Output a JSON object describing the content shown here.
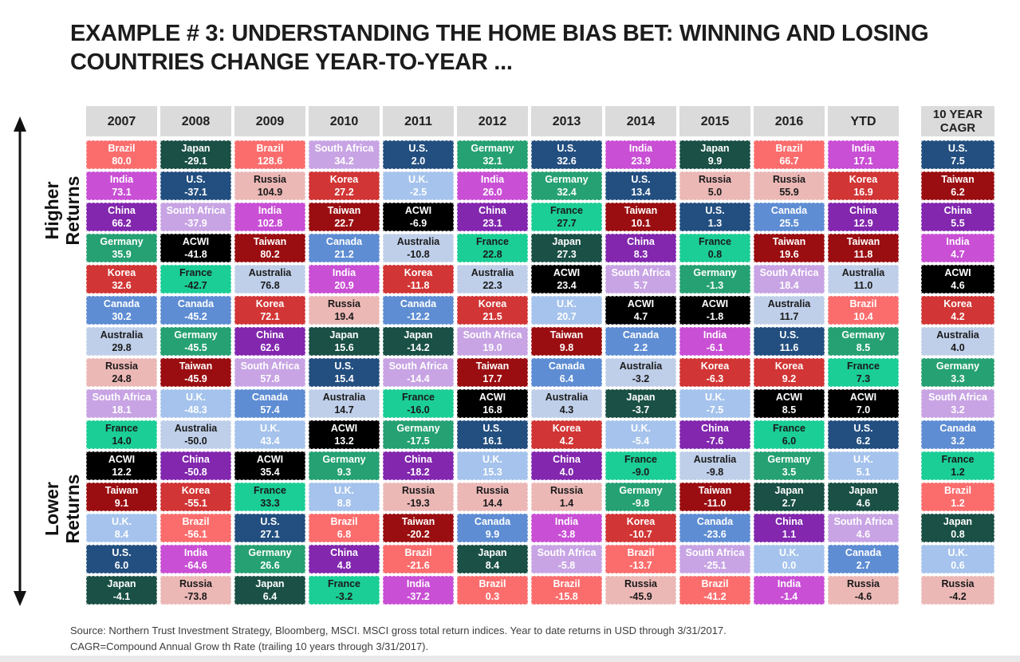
{
  "page": {
    "title_line1": "EXAMPLE # 3:  UNDERSTANDING THE HOME BIAS BET: WINNING AND LOSING",
    "title_line2": "COUNTRIES CHANGE YEAR-TO-YEAR ...",
    "axis": {
      "higher_label": "Higher Returns",
      "higher_line1": "Higher",
      "higher_line2": "Returns",
      "lower_label": "Lower Returns",
      "lower_line1": "Lower",
      "lower_line2": "Returns"
    },
    "footer_line1": "Source: Northern Trust Investment Strategy, Bloomberg, MSCI. MSCI gross total return indices. Year to date returns in USD through 3/31/2017.",
    "footer_line2": "CAGR=Compound Annual Grow th Rate (trailing 10 years through 3/31/2017)."
  },
  "chart_data": {
    "type": "table",
    "title": "Understanding the home bias bet: winning and losing countries change year-to-year",
    "description": "Periodic table of annual MSCI country index total returns (%), ranked best to worst per year",
    "legend_position": "none",
    "header_bg": "#dbdbdb",
    "country_colors": {
      "Brazil": {
        "bg": "#FB6D6D",
        "fg": "#FFFFFF"
      },
      "India": {
        "bg": "#C94FD5",
        "fg": "#FFFFFF"
      },
      "China": {
        "bg": "#8227AE",
        "fg": "#FFFFFF"
      },
      "Germany": {
        "bg": "#26A173",
        "fg": "#FFFFFF"
      },
      "Korea": {
        "bg": "#D23535",
        "fg": "#FFFFFF"
      },
      "Canada": {
        "bg": "#5E8DD3",
        "fg": "#FFFFFF"
      },
      "Australia": {
        "bg": "#BFCFE9",
        "fg": "#1A1A1A"
      },
      "Russia": {
        "bg": "#EBB8B6",
        "fg": "#1A1A1A"
      },
      "South Africa": {
        "bg": "#C8A4E4",
        "fg": "#FFFFFF"
      },
      "France": {
        "bg": "#1BCE96",
        "fg": "#1A1A1A"
      },
      "ACWI": {
        "bg": "#000000",
        "fg": "#FFFFFF"
      },
      "Taiwan": {
        "bg": "#9A0E11",
        "fg": "#FFFFFF"
      },
      "U.K.": {
        "bg": "#A5C3EC",
        "fg": "#FFFFFF"
      },
      "U.S.": {
        "bg": "#234F80",
        "fg": "#FFFFFF"
      },
      "Japan": {
        "bg": "#1A5045",
        "fg": "#FFFFFF"
      }
    },
    "columns": [
      {
        "label": "2007",
        "cells": [
          [
            "Brazil",
            "80.0"
          ],
          [
            "India",
            "73.1"
          ],
          [
            "China",
            "66.2"
          ],
          [
            "Germany",
            "35.9"
          ],
          [
            "Korea",
            "32.6"
          ],
          [
            "Canada",
            "30.2"
          ],
          [
            "Australia",
            "29.8"
          ],
          [
            "Russia",
            "24.8"
          ],
          [
            "South Africa",
            "18.1"
          ],
          [
            "France",
            "14.0"
          ],
          [
            "ACWI",
            "12.2"
          ],
          [
            "Taiwan",
            "9.1"
          ],
          [
            "U.K.",
            "8.4"
          ],
          [
            "U.S.",
            "6.0"
          ],
          [
            "Japan",
            "-4.1"
          ]
        ]
      },
      {
        "label": "2008",
        "cells": [
          [
            "Japan",
            "-29.1"
          ],
          [
            "U.S.",
            "-37.1"
          ],
          [
            "South Africa",
            "-37.9"
          ],
          [
            "ACWI",
            "-41.8"
          ],
          [
            "France",
            "-42.7"
          ],
          [
            "Canada",
            "-45.2"
          ],
          [
            "Germany",
            "-45.5"
          ],
          [
            "Taiwan",
            "-45.9"
          ],
          [
            "U.K.",
            "-48.3"
          ],
          [
            "Australia",
            "-50.0"
          ],
          [
            "China",
            "-50.8"
          ],
          [
            "Korea",
            "-55.1"
          ],
          [
            "Brazil",
            "-56.1"
          ],
          [
            "India",
            "-64.6"
          ],
          [
            "Russia",
            "-73.8"
          ]
        ]
      },
      {
        "label": "2009",
        "cells": [
          [
            "Brazil",
            "128.6"
          ],
          [
            "Russia",
            "104.9"
          ],
          [
            "India",
            "102.8"
          ],
          [
            "Taiwan",
            "80.2"
          ],
          [
            "Australia",
            "76.8"
          ],
          [
            "Korea",
            "72.1"
          ],
          [
            "China",
            "62.6"
          ],
          [
            "South Africa",
            "57.8"
          ],
          [
            "Canada",
            "57.4"
          ],
          [
            "U.K.",
            "43.4"
          ],
          [
            "ACWI",
            "35.4"
          ],
          [
            "France",
            "33.3"
          ],
          [
            "U.S.",
            "27.1"
          ],
          [
            "Germany",
            "26.6"
          ],
          [
            "Japan",
            "6.4"
          ]
        ]
      },
      {
        "label": "2010",
        "cells": [
          [
            "South Africa",
            "34.2"
          ],
          [
            "Korea",
            "27.2"
          ],
          [
            "Taiwan",
            "22.7"
          ],
          [
            "Canada",
            "21.2"
          ],
          [
            "India",
            "20.9"
          ],
          [
            "Russia",
            "19.4"
          ],
          [
            "Japan",
            "15.6"
          ],
          [
            "U.S.",
            "15.4"
          ],
          [
            "Australia",
            "14.7"
          ],
          [
            "ACWI",
            "13.2"
          ],
          [
            "Germany",
            "9.3"
          ],
          [
            "U.K.",
            "8.8"
          ],
          [
            "Brazil",
            "6.8"
          ],
          [
            "China",
            "4.8"
          ],
          [
            "France",
            "-3.2"
          ]
        ]
      },
      {
        "label": "2011",
        "cells": [
          [
            "U.S.",
            "2.0"
          ],
          [
            "U.K.",
            "-2.5"
          ],
          [
            "ACWI",
            "-6.9"
          ],
          [
            "Australia",
            "-10.8"
          ],
          [
            "Korea",
            "-11.8"
          ],
          [
            "Canada",
            "-12.2"
          ],
          [
            "Japan",
            "-14.2"
          ],
          [
            "South Africa",
            "-14.4"
          ],
          [
            "France",
            "-16.0"
          ],
          [
            "Germany",
            "-17.5"
          ],
          [
            "China",
            "-18.2"
          ],
          [
            "Russia",
            "-19.3"
          ],
          [
            "Taiwan",
            "-20.2"
          ],
          [
            "Brazil",
            "-21.6"
          ],
          [
            "India",
            "-37.2"
          ]
        ]
      },
      {
        "label": "2012",
        "cells": [
          [
            "Germany",
            "32.1"
          ],
          [
            "India",
            "26.0"
          ],
          [
            "China",
            "23.1"
          ],
          [
            "France",
            "22.8"
          ],
          [
            "Australia",
            "22.3"
          ],
          [
            "Korea",
            "21.5"
          ],
          [
            "South Africa",
            "19.0"
          ],
          [
            "Taiwan",
            "17.7"
          ],
          [
            "ACWI",
            "16.8"
          ],
          [
            "U.S.",
            "16.1"
          ],
          [
            "U.K.",
            "15.3"
          ],
          [
            "Russia",
            "14.4"
          ],
          [
            "Canada",
            "9.9"
          ],
          [
            "Japan",
            "8.4"
          ],
          [
            "Brazil",
            "0.3"
          ]
        ]
      },
      {
        "label": "2013",
        "cells": [
          [
            "U.S.",
            "32.6"
          ],
          [
            "Germany",
            "32.4"
          ],
          [
            "France",
            "27.7"
          ],
          [
            "Japan",
            "27.3"
          ],
          [
            "ACWI",
            "23.4"
          ],
          [
            "U.K.",
            "20.7"
          ],
          [
            "Taiwan",
            "9.8"
          ],
          [
            "Canada",
            "6.4"
          ],
          [
            "Australia",
            "4.3"
          ],
          [
            "Korea",
            "4.2"
          ],
          [
            "China",
            "4.0"
          ],
          [
            "Russia",
            "1.4"
          ],
          [
            "India",
            "-3.8"
          ],
          [
            "South Africa",
            "-5.8"
          ],
          [
            "Brazil",
            "-15.8"
          ]
        ]
      },
      {
        "label": "2014",
        "cells": [
          [
            "India",
            "23.9"
          ],
          [
            "U.S.",
            "13.4"
          ],
          [
            "Taiwan",
            "10.1"
          ],
          [
            "China",
            "8.3"
          ],
          [
            "South Africa",
            "5.7"
          ],
          [
            "ACWI",
            "4.7"
          ],
          [
            "Canada",
            "2.2"
          ],
          [
            "Australia",
            "-3.2"
          ],
          [
            "Japan",
            "-3.7"
          ],
          [
            "U.K.",
            "-5.4"
          ],
          [
            "France",
            "-9.0"
          ],
          [
            "Germany",
            "-9.8"
          ],
          [
            "Korea",
            "-10.7"
          ],
          [
            "Brazil",
            "-13.7"
          ],
          [
            "Russia",
            "-45.9"
          ]
        ]
      },
      {
        "label": "2015",
        "cells": [
          [
            "Japan",
            "9.9"
          ],
          [
            "Russia",
            "5.0"
          ],
          [
            "U.S.",
            "1.3"
          ],
          [
            "France",
            "0.8"
          ],
          [
            "Germany",
            "-1.3"
          ],
          [
            "ACWI",
            "-1.8"
          ],
          [
            "India",
            "-6.1"
          ],
          [
            "Korea",
            "-6.3"
          ],
          [
            "U.K.",
            "-7.5"
          ],
          [
            "China",
            "-7.6"
          ],
          [
            "Australia",
            "-9.8"
          ],
          [
            "Taiwan",
            "-11.0"
          ],
          [
            "Canada",
            "-23.6"
          ],
          [
            "South Africa",
            "-25.1"
          ],
          [
            "Brazil",
            "-41.2"
          ]
        ]
      },
      {
        "label": "2016",
        "cells": [
          [
            "Brazil",
            "66.7"
          ],
          [
            "Russia",
            "55.9"
          ],
          [
            "Canada",
            "25.5"
          ],
          [
            "Taiwan",
            "19.6"
          ],
          [
            "South Africa",
            "18.4"
          ],
          [
            "Australia",
            "11.7"
          ],
          [
            "U.S.",
            "11.6"
          ],
          [
            "Korea",
            "9.2"
          ],
          [
            "ACWI",
            "8.5"
          ],
          [
            "France",
            "6.0"
          ],
          [
            "Germany",
            "3.5"
          ],
          [
            "Japan",
            "2.7"
          ],
          [
            "China",
            "1.1"
          ],
          [
            "U.K.",
            "0.0"
          ],
          [
            "India",
            "-1.4"
          ]
        ]
      },
      {
        "label": "YTD",
        "cells": [
          [
            "India",
            "17.1"
          ],
          [
            "Korea",
            "16.9"
          ],
          [
            "China",
            "12.9"
          ],
          [
            "Taiwan",
            "11.8"
          ],
          [
            "Australia",
            "11.0"
          ],
          [
            "Brazil",
            "10.4"
          ],
          [
            "Germany",
            "8.5"
          ],
          [
            "France",
            "7.3"
          ],
          [
            "ACWI",
            "7.0"
          ],
          [
            "U.S.",
            "6.2"
          ],
          [
            "U.K.",
            "5.1"
          ],
          [
            "Japan",
            "4.6"
          ],
          [
            "South Africa",
            "4.6"
          ],
          [
            "Canada",
            "2.7"
          ],
          [
            "Russia",
            "-4.6"
          ]
        ]
      }
    ],
    "cagr_column": {
      "label": "10 YEAR CAGR",
      "cells": [
        [
          "U.S.",
          "7.5"
        ],
        [
          "Taiwan",
          "6.2"
        ],
        [
          "China",
          "5.5"
        ],
        [
          "India",
          "4.7"
        ],
        [
          "ACWI",
          "4.6"
        ],
        [
          "Korea",
          "4.2"
        ],
        [
          "Australia",
          "4.0"
        ],
        [
          "Germany",
          "3.3"
        ],
        [
          "South Africa",
          "3.2"
        ],
        [
          "Canada",
          "3.2"
        ],
        [
          "France",
          "1.2"
        ],
        [
          "Brazil",
          "1.2"
        ],
        [
          "Japan",
          "0.8"
        ],
        [
          "U.K.",
          "0.6"
        ],
        [
          "Russia",
          "-4.2"
        ]
      ]
    }
  }
}
